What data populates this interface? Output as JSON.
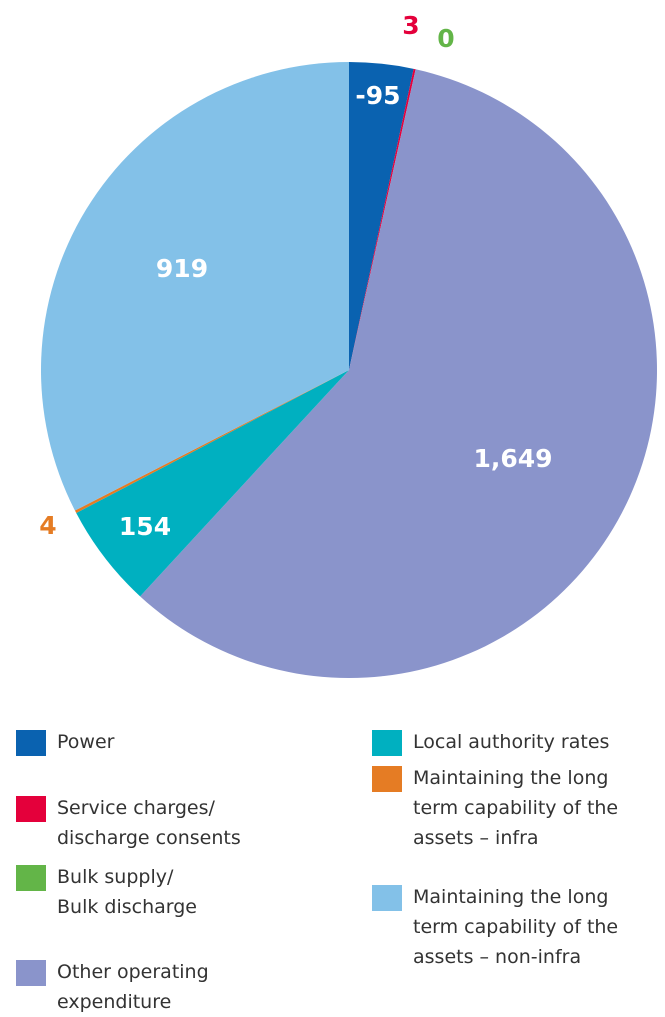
{
  "chart_data": {
    "type": "pie",
    "categories": [
      "Power",
      "Service charges/\ndischarge consents",
      "Bulk supply/\nBulk discharge",
      "Other operating\nexpenditure",
      "Local authority rates",
      "Maintaining the long\nterm capability of the\nassets – infra",
      "Maintaining the long\nterm capability of the\nassets – non-infra"
    ],
    "values": [
      -95,
      3,
      0,
      1649,
      154,
      4,
      919
    ],
    "value_labels": [
      "-95",
      "3",
      "0",
      "1,649",
      "154",
      "4",
      "919"
    ],
    "colors": [
      "#0a62b0",
      "#e4003b",
      "#63b548",
      "#8a94cb",
      "#00b0c0",
      "#e57c24",
      "#83c1e8"
    ],
    "legend": "bottom"
  }
}
